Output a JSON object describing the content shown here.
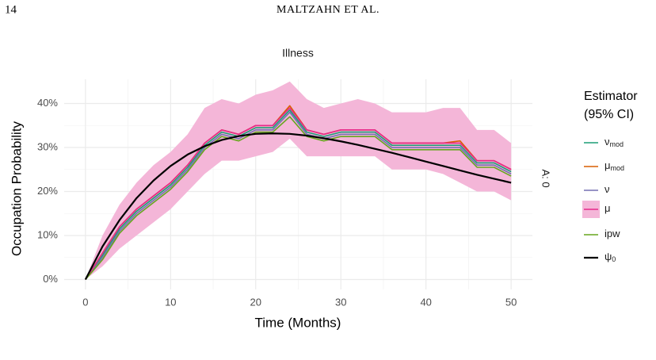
{
  "page": {
    "number": "14",
    "running_head": "MALTZAHN ET AL."
  },
  "chart_data": {
    "type": "line",
    "title": "Illness",
    "facet_label": "A: 0",
    "x_label": "Time (Months)",
    "y_label": "Occupation Probability",
    "legend_title": [
      "Estimator",
      "(95% CI)"
    ],
    "legend_position": "right",
    "grid": true,
    "xlim": [
      -2.5,
      52.5
    ],
    "ylim": [
      -2.25,
      45.5
    ],
    "xticks": [
      0,
      10,
      20,
      30,
      40,
      50
    ],
    "yticks": [
      {
        "value": 0,
        "label": "0%"
      },
      {
        "value": 10,
        "label": "10%"
      },
      {
        "value": 20,
        "label": "20%"
      },
      {
        "value": 30,
        "label": "30%"
      },
      {
        "value": 40,
        "label": "40%"
      }
    ],
    "x": [
      0,
      2,
      4,
      6,
      8,
      10,
      12,
      14,
      16,
      18,
      20,
      22,
      24,
      26,
      28,
      30,
      32,
      34,
      36,
      38,
      40,
      42,
      44,
      46,
      48,
      50
    ],
    "series": [
      {
        "name": "ν",
        "name_sub": "mod",
        "color": "#1b9e77",
        "values": [
          0,
          5.5,
          11.5,
          15.5,
          18.5,
          21.5,
          25.5,
          30.5,
          33.5,
          32.5,
          34.5,
          34.5,
          38.5,
          33.5,
          32.5,
          33.5,
          33.5,
          33.5,
          30.5,
          30.5,
          30.5,
          30.5,
          30.5,
          26.5,
          26.5,
          24.5
        ]
      },
      {
        "name": "μ",
        "name_sub": "mod",
        "color": "#d95f02",
        "values": [
          0,
          6,
          12,
          16,
          19,
          22,
          26,
          31,
          34,
          33,
          35,
          35,
          39.5,
          34,
          33,
          34,
          34,
          34,
          31,
          31,
          31,
          31,
          31.5,
          27,
          27,
          25
        ]
      },
      {
        "name": "ν",
        "color": "#7570b3",
        "values": [
          0,
          5,
          11,
          15,
          18,
          21,
          25,
          30,
          33,
          32,
          34,
          34,
          38,
          33,
          32,
          33,
          33,
          33,
          30,
          30,
          30,
          30,
          30,
          26,
          26,
          24
        ]
      },
      {
        "name": "μ",
        "color": "#e7298a",
        "band_color": "#f4b6d8",
        "values": [
          0,
          6,
          12,
          16,
          19,
          22,
          26,
          31,
          34,
          33,
          35,
          35,
          39,
          34,
          33,
          34,
          34,
          34,
          31,
          31,
          31,
          31,
          31,
          27,
          27,
          25
        ],
        "lower": [
          0,
          3,
          7,
          10,
          13,
          16,
          20,
          24,
          27,
          27,
          28,
          29,
          32,
          28,
          28,
          28,
          28,
          28,
          25,
          25,
          25,
          24,
          22,
          20,
          20,
          18
        ],
        "upper": [
          0,
          10,
          17,
          22,
          26,
          29,
          33,
          39,
          41,
          40,
          42,
          43,
          45,
          41,
          39,
          40,
          41,
          40,
          38,
          38,
          38,
          39,
          39,
          34,
          34,
          31
        ]
      },
      {
        "name": "ipw",
        "color": "#66a61e",
        "values": [
          0,
          4.5,
          10.5,
          14.5,
          17.5,
          20.5,
          24.5,
          29.5,
          32.5,
          31.5,
          33.5,
          33.5,
          37,
          32.5,
          31.5,
          32.5,
          32.5,
          32.5,
          29.5,
          29.5,
          29.5,
          29.5,
          29.5,
          25.5,
          25.5,
          23.5
        ]
      },
      {
        "name": "ψ",
        "name_sub": "0",
        "color": "#000000",
        "width": 2.2,
        "values": [
          0,
          7.5,
          13.5,
          18.5,
          22.5,
          25.8,
          28.4,
          30.3,
          31.7,
          32.6,
          33.1,
          33.2,
          33.1,
          32.7,
          32.1,
          31.4,
          30.6,
          29.7,
          28.8,
          27.8,
          26.8,
          25.8,
          24.8,
          23.8,
          22.9,
          22.0
        ]
      }
    ]
  }
}
